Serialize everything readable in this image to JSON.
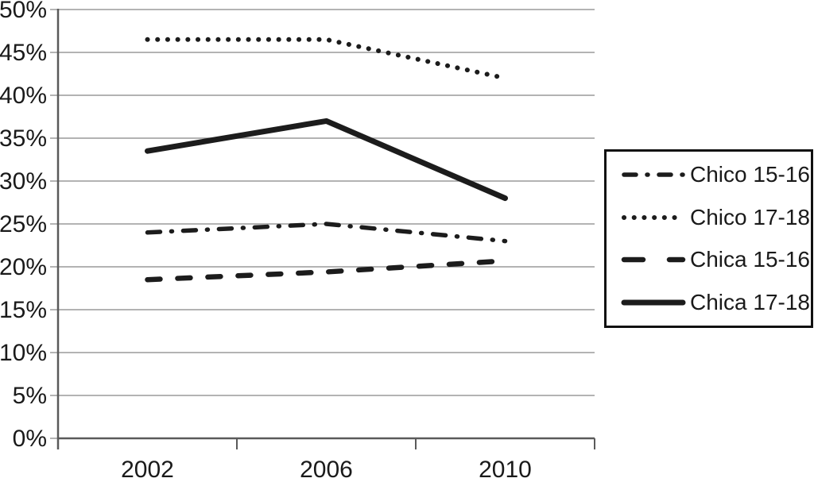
{
  "chart_data": {
    "type": "line",
    "title": "",
    "xlabel": "",
    "ylabel": "",
    "categories": [
      "2002",
      "2006",
      "2010"
    ],
    "series": [
      {
        "name": "Chico 15-16",
        "style": "dash-dot",
        "values": [
          24,
          25,
          23
        ]
      },
      {
        "name": "Chico 17-18",
        "style": "dotted",
        "values": [
          46.5,
          46.5,
          42
        ]
      },
      {
        "name": "Chica 15-16",
        "style": "dashed",
        "values": [
          18.5,
          19.4,
          20.7
        ]
      },
      {
        "name": "Chica 17-18",
        "style": "solid",
        "values": [
          33.5,
          37,
          28
        ]
      }
    ],
    "y_axis": {
      "min": 0,
      "max": 50,
      "step": 5,
      "tick_labels": [
        "0%",
        "5%",
        "10%",
        "15%",
        "20%",
        "25%",
        "30%",
        "35%",
        "40%",
        "45%",
        "50%"
      ]
    },
    "x_axis": {
      "tick_labels": [
        "2002",
        "2006",
        "2010"
      ]
    },
    "legend": {
      "position": "right",
      "entries": [
        "Chico 15-16",
        "Chico 17-18",
        "Chica 15-16",
        "Chica 17-18"
      ]
    },
    "grid": true,
    "colors": {
      "line": "#1c1c1c",
      "grid": "#9a9a9a",
      "axis": "#5a5a5a",
      "text": "#1a1a1a",
      "legend_border": "#111111",
      "background": "#ffffff"
    }
  }
}
